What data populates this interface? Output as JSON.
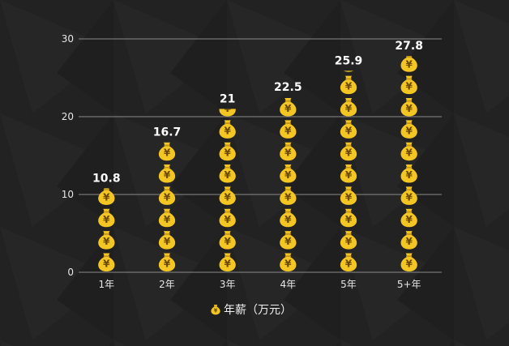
{
  "chart_data": {
    "type": "bar",
    "categories": [
      "1年",
      "2年",
      "3年",
      "4年",
      "5年",
      "5+年"
    ],
    "values": [
      10.8,
      16.7,
      21,
      22.5,
      25.9,
      27.8
    ],
    "data_labels": [
      "10.8",
      "16.7",
      "21",
      "22.5",
      "25.9",
      "27.8"
    ],
    "yticks": [
      "0",
      "10",
      "20",
      "30"
    ],
    "ylim": [
      0,
      30
    ],
    "grid": true,
    "legend": {
      "label": "年薪（万元）",
      "placement": "bottom-center"
    },
    "bar_symbol": "money-bag-icon",
    "bar_symbol_glyph": "¥",
    "unit_per_symbol": 2.85
  },
  "colors": {
    "background": "#222222",
    "grid": "#8a8a8a",
    "axis_text": "#e6e6e6",
    "label_text": "#ffffff",
    "bag_fill": "#f3c623",
    "bag_shade": "#c99610",
    "bag_text": "#6b4a00"
  }
}
